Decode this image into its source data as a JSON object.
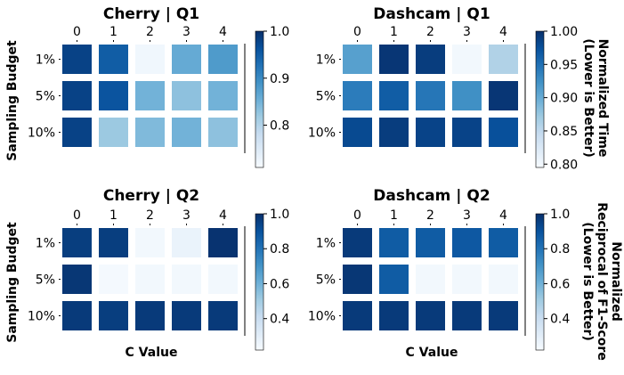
{
  "figure": {
    "row_ylabel": "Sampling Budget",
    "xlabel": "C Value",
    "row_side_labels": [
      [
        "Normalized Time",
        "(Lower is Better)"
      ],
      [
        "Normalized",
        "Reciprocal of F1-Score",
        "(Lower is Better)"
      ]
    ]
  },
  "colors": {
    "colormap": "Blues",
    "low": "#f7fbff",
    "high": "#08306b"
  },
  "chart_data": [
    {
      "type": "heatmap",
      "title": "Cherry | Q1",
      "x_ticks": [
        "0",
        "1",
        "2",
        "3",
        "4"
      ],
      "y_ticks": [
        "1%",
        "5%",
        "10%"
      ],
      "values": [
        [
          0.98,
          0.95,
          0.72,
          0.86,
          0.88
        ],
        [
          0.98,
          0.96,
          0.85,
          0.83,
          0.85
        ],
        [
          0.98,
          0.82,
          0.84,
          0.85,
          0.83
        ]
      ],
      "vmin": 0.71,
      "vmax": 1.0,
      "colorbar_ticks": [
        0.8,
        0.9,
        1.0
      ],
      "colorbar_tick_labels": [
        "0.8",
        "0.9",
        "1.0"
      ]
    },
    {
      "type": "heatmap",
      "title": "Dashcam | Q1",
      "x_ticks": [
        "0",
        "1",
        "2",
        "3",
        "4"
      ],
      "y_ticks": [
        "1%",
        "5%",
        "10%"
      ],
      "values": [
        [
          0.91,
          0.995,
          0.99,
          0.8,
          0.86
        ],
        [
          0.94,
          0.965,
          0.945,
          0.925,
          0.995
        ],
        [
          0.98,
          0.99,
          0.985,
          0.985,
          0.975
        ]
      ],
      "vmin": 0.795,
      "vmax": 1.0,
      "colorbar_ticks": [
        0.8,
        0.85,
        0.9,
        0.95,
        1.0
      ],
      "colorbar_tick_labels": [
        "0.80",
        "0.85",
        "0.90",
        "0.95",
        "1.00"
      ]
    },
    {
      "type": "heatmap",
      "title": "Cherry | Q2",
      "x_ticks": [
        "0",
        "1",
        "2",
        "3",
        "4"
      ],
      "y_ticks": [
        "1%",
        "5%",
        "10%"
      ],
      "values": [
        [
          0.96,
          0.96,
          0.24,
          0.27,
          0.99
        ],
        [
          0.98,
          0.23,
          0.24,
          0.24,
          0.24
        ],
        [
          0.97,
          0.96,
          0.97,
          0.97,
          0.97
        ]
      ],
      "vmin": 0.22,
      "vmax": 1.0,
      "colorbar_ticks": [
        0.4,
        0.6,
        0.8,
        1.0
      ],
      "colorbar_tick_labels": [
        "0.4",
        "0.6",
        "0.8",
        "1.0"
      ]
    },
    {
      "type": "heatmap",
      "title": "Dashcam | Q2",
      "x_ticks": [
        "0",
        "1",
        "2",
        "3",
        "4"
      ],
      "y_ticks": [
        "1%",
        "5%",
        "10%"
      ],
      "values": [
        [
          0.97,
          0.87,
          0.87,
          0.88,
          0.87
        ],
        [
          0.98,
          0.87,
          0.24,
          0.24,
          0.24
        ],
        [
          0.97,
          0.97,
          0.97,
          0.97,
          0.97
        ]
      ],
      "vmin": 0.22,
      "vmax": 1.0,
      "colorbar_ticks": [
        0.4,
        0.6,
        0.8,
        1.0
      ],
      "colorbar_tick_labels": [
        "0.4",
        "0.6",
        "0.8",
        "1.0"
      ]
    }
  ]
}
